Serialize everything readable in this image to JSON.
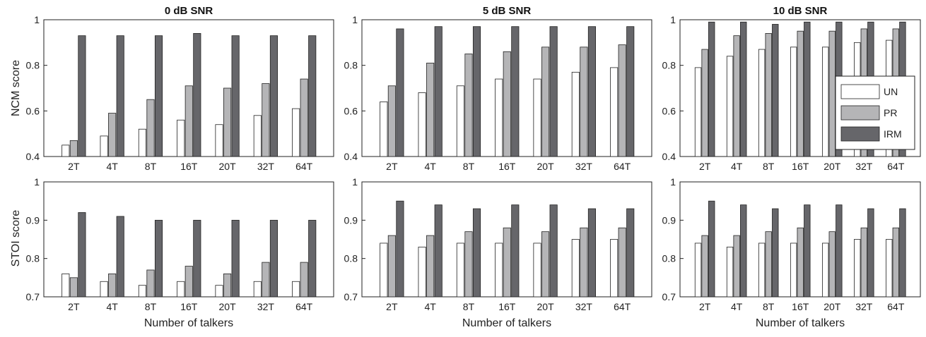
{
  "figure": {
    "row_ylabels": [
      "NCM score",
      "STOI score"
    ],
    "xlabel": "Number of talkers"
  },
  "legend": {
    "entries": [
      {
        "label": "UN",
        "color": "#ffffff"
      },
      {
        "label": "PR",
        "color": "#b5b5b7"
      },
      {
        "label": "IRM",
        "color": "#66666a"
      }
    ],
    "placement": "right (top-right panel)"
  },
  "chart_data": [
    {
      "type": "bar",
      "title": "0 dB SNR",
      "ylabel": "NCM score",
      "xlabel": "",
      "categories": [
        "2T",
        "4T",
        "8T",
        "16T",
        "20T",
        "32T",
        "64T"
      ],
      "ylim": [
        0.4,
        1
      ],
      "yticks": [
        "0.4",
        "0.6",
        "0.8",
        "1"
      ],
      "series": [
        {
          "name": "UN",
          "values": [
            0.45,
            0.49,
            0.52,
            0.56,
            0.54,
            0.58,
            0.61
          ]
        },
        {
          "name": "PR",
          "values": [
            0.47,
            0.59,
            0.65,
            0.71,
            0.7,
            0.72,
            0.74
          ]
        },
        {
          "name": "IRM",
          "values": [
            0.93,
            0.93,
            0.93,
            0.94,
            0.93,
            0.93,
            0.93
          ]
        }
      ]
    },
    {
      "type": "bar",
      "title": "5 dB SNR",
      "ylabel": "",
      "xlabel": "",
      "categories": [
        "2T",
        "4T",
        "8T",
        "16T",
        "20T",
        "32T",
        "64T"
      ],
      "ylim": [
        0.4,
        1
      ],
      "yticks": [
        "0.4",
        "0.6",
        "0.8",
        "1"
      ],
      "series": [
        {
          "name": "UN",
          "values": [
            0.64,
            0.68,
            0.71,
            0.74,
            0.74,
            0.77,
            0.79
          ]
        },
        {
          "name": "PR",
          "values": [
            0.71,
            0.81,
            0.85,
            0.86,
            0.88,
            0.88,
            0.89
          ]
        },
        {
          "name": "IRM",
          "values": [
            0.96,
            0.97,
            0.97,
            0.97,
            0.97,
            0.97,
            0.97
          ]
        }
      ]
    },
    {
      "type": "bar",
      "title": "10 dB SNR",
      "ylabel": "",
      "xlabel": "",
      "categories": [
        "2T",
        "4T",
        "8T",
        "16T",
        "20T",
        "32T",
        "64T"
      ],
      "ylim": [
        0.4,
        1
      ],
      "yticks": [
        "0.4",
        "0.6",
        "0.8",
        "1"
      ],
      "series": [
        {
          "name": "UN",
          "values": [
            0.79,
            0.84,
            0.87,
            0.88,
            0.88,
            0.9,
            0.91
          ]
        },
        {
          "name": "PR",
          "values": [
            0.87,
            0.93,
            0.94,
            0.95,
            0.95,
            0.96,
            0.96
          ]
        },
        {
          "name": "IRM",
          "values": [
            0.99,
            0.99,
            0.98,
            0.99,
            0.99,
            0.99,
            0.99
          ]
        }
      ],
      "legend": true
    },
    {
      "type": "bar",
      "title": "",
      "ylabel": "STOI score",
      "xlabel": "Number of talkers",
      "categories": [
        "2T",
        "4T",
        "8T",
        "16T",
        "20T",
        "32T",
        "64T"
      ],
      "ylim": [
        0.7,
        1
      ],
      "yticks": [
        "0.7",
        "0.8",
        "0.9",
        "1"
      ],
      "series": [
        {
          "name": "UN",
          "values": [
            0.76,
            0.74,
            0.73,
            0.74,
            0.73,
            0.74,
            0.74
          ]
        },
        {
          "name": "PR",
          "values": [
            0.75,
            0.76,
            0.77,
            0.78,
            0.76,
            0.79,
            0.79
          ]
        },
        {
          "name": "IRM",
          "values": [
            0.92,
            0.91,
            0.9,
            0.9,
            0.9,
            0.9,
            0.9
          ]
        }
      ]
    },
    {
      "type": "bar",
      "title": "",
      "ylabel": "",
      "xlabel": "Number of talkers",
      "categories": [
        "2T",
        "4T",
        "8T",
        "16T",
        "20T",
        "32T",
        "64T"
      ],
      "ylim": [
        0.7,
        1
      ],
      "yticks": [
        "0.7",
        "0.8",
        "0.9",
        "1"
      ],
      "series": [
        {
          "name": "UN",
          "values": [
            0.84,
            0.83,
            0.84,
            0.84,
            0.84,
            0.85,
            0.85
          ]
        },
        {
          "name": "PR",
          "values": [
            0.86,
            0.86,
            0.87,
            0.88,
            0.87,
            0.88,
            0.88
          ]
        },
        {
          "name": "IRM",
          "values": [
            0.95,
            0.94,
            0.93,
            0.94,
            0.94,
            0.93,
            0.93
          ]
        }
      ]
    },
    {
      "type": "bar",
      "title": "",
      "ylabel": "",
      "xlabel": "Number of talkers",
      "categories": [
        "2T",
        "4T",
        "8T",
        "16T",
        "20T",
        "32T",
        "64T"
      ],
      "ylim": [
        0.7,
        1
      ],
      "yticks": [
        "0.7",
        "0.8",
        "0.9",
        "1"
      ],
      "series": [
        {
          "name": "UN",
          "values": [
            0.84,
            0.83,
            0.84,
            0.84,
            0.84,
            0.85,
            0.85
          ]
        },
        {
          "name": "PR",
          "values": [
            0.86,
            0.86,
            0.87,
            0.88,
            0.87,
            0.88,
            0.88
          ]
        },
        {
          "name": "IRM",
          "values": [
            0.95,
            0.94,
            0.93,
            0.94,
            0.94,
            0.93,
            0.93
          ]
        }
      ]
    }
  ]
}
